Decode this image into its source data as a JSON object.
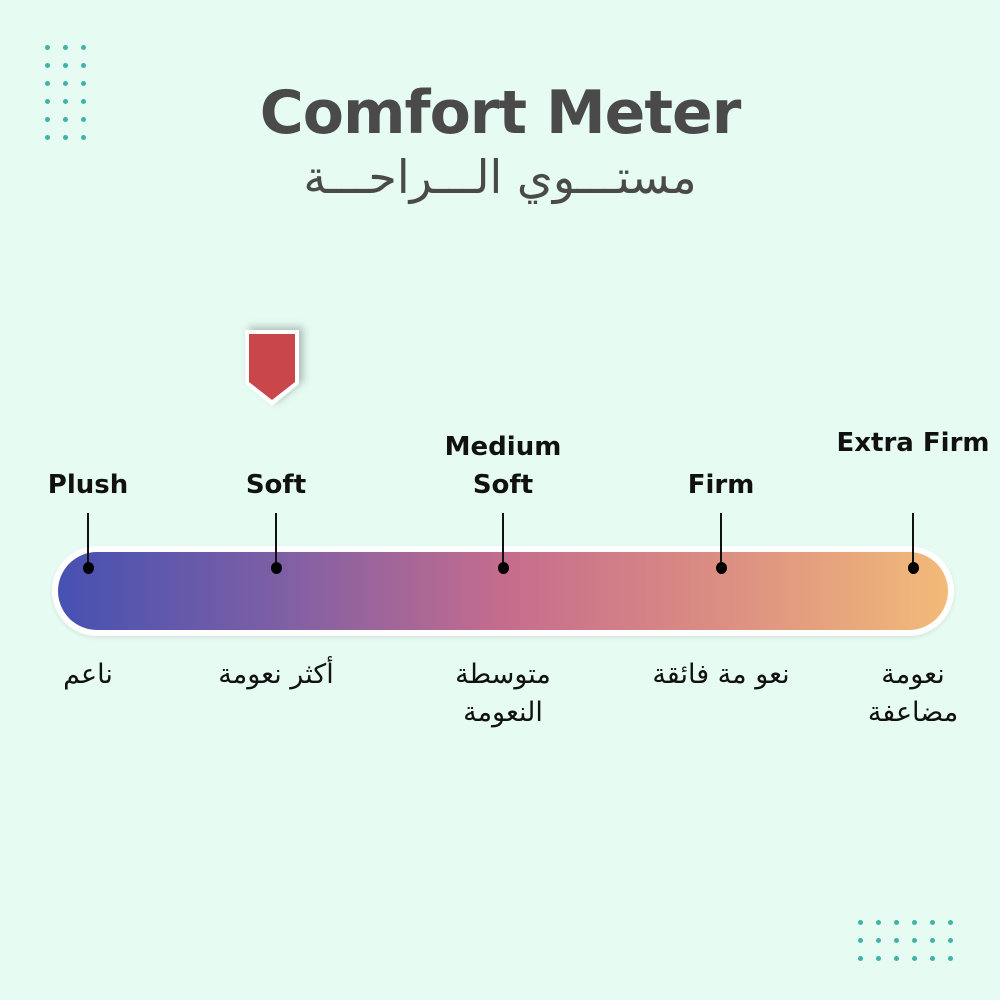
{
  "header": {
    "title": "Comfort Meter",
    "subtitle": "مستـــوي الـــراحـــة"
  },
  "meter": {
    "gradient_colors": [
      "#4651b2",
      "#7e5fa5",
      "#c56c8d",
      "#dc8f82",
      "#f2bb78"
    ],
    "marker_color": "#c9474a",
    "selected_level": "Soft",
    "levels": [
      {
        "en": "Plush",
        "ar": "ناعم"
      },
      {
        "en": "Soft",
        "ar": "أكثر نعومة"
      },
      {
        "en": "Medium Soft",
        "ar": "متوسطة النعومة"
      },
      {
        "en": "Firm",
        "ar": "نعو مة فائقة"
      },
      {
        "en": "Extra Firm",
        "ar": "نعومة مضاعفة"
      }
    ]
  },
  "decor": {
    "dot_color": "#3fb3a6"
  }
}
